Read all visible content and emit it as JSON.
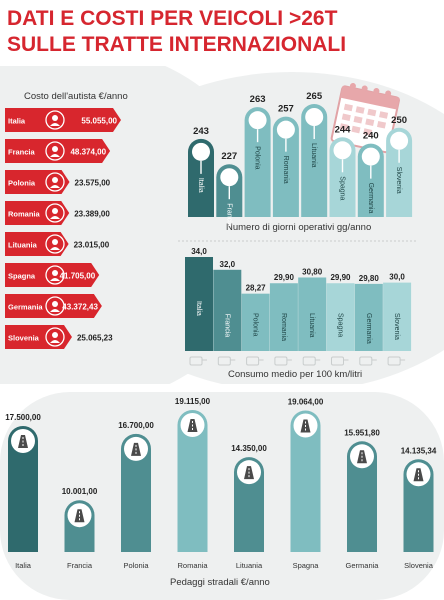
{
  "header": {
    "title_line1": "DATI E COSTI PER VEICOLI >26T",
    "title_line2": "SULLE TRATTE INTERNAZIONALI"
  },
  "colors": {
    "title_red": "#d6262f",
    "dark_teal": "#2f6a6d",
    "mid_teal": "#4f8e91",
    "light_teal": "#7fbdc0",
    "pale_teal": "#a7d6d8",
    "red": "#d8262d",
    "bg_gray": "#eef0f0"
  },
  "icons": {
    "driver": "driver-icon",
    "calendar": "calendar-icon",
    "highway": "highway-icon",
    "fuel": "fuel-icon"
  },
  "chart_data": [
    {
      "type": "bar",
      "title": "Costo dell'autista  €/anno",
      "orientation": "horizontal",
      "categories": [
        "Italia",
        "Francia",
        "Polonia",
        "Romania",
        "Lituania",
        "Spagna",
        "Germania",
        "Slovenia"
      ],
      "values": [
        55055.0,
        48374.0,
        23575.0,
        23389.0,
        23015.0,
        41705.0,
        43372.43,
        25065.23
      ],
      "labels": [
        "55.055,00",
        "48.374,00",
        "23.575,00",
        "23.389,00",
        "23.015,00",
        "41.705,00",
        "43.372,43",
        "25.065,23"
      ]
    },
    {
      "type": "bar",
      "title": "Numero di giorni operativi gg/anno",
      "categories": [
        "Italia",
        "Francia",
        "Polonia",
        "Romania",
        "Lituania",
        "Spagna",
        "Germania",
        "Slovenia"
      ],
      "values": [
        243,
        227,
        263,
        257,
        265,
        244,
        240,
        250
      ],
      "labels": [
        "243",
        "227",
        "263",
        "257",
        "265",
        "244",
        "240",
        "250"
      ]
    },
    {
      "type": "bar",
      "title": "Consumo medio per 100 km/litri",
      "categories": [
        "Italia",
        "Francia",
        "Polonia",
        "Romania",
        "Lituania",
        "Spagna",
        "Germania",
        "Slovenia"
      ],
      "values": [
        34.0,
        32.0,
        28.27,
        29.9,
        30.8,
        29.9,
        29.8,
        30.0
      ],
      "labels": [
        "34,0",
        "32,0",
        "28,27",
        "29,90",
        "30,80",
        "29,90",
        "29,80",
        "30,0"
      ]
    },
    {
      "type": "bar",
      "title": "Pedaggi stradali €/anno",
      "categories": [
        "Italia",
        "Francia",
        "Polonia",
        "Romania",
        "Lituania",
        "Spagna",
        "Germania",
        "Slovenia"
      ],
      "values": [
        17500.0,
        10001.0,
        16700.0,
        19115.0,
        14350.0,
        19064.0,
        15951.8,
        14135.34
      ],
      "labels": [
        "17.500,00",
        "10.001,00",
        "16.700,00",
        "19.115,00",
        "14.350,00",
        "19.064,00",
        "15.951,80",
        "14.135,34"
      ]
    }
  ]
}
